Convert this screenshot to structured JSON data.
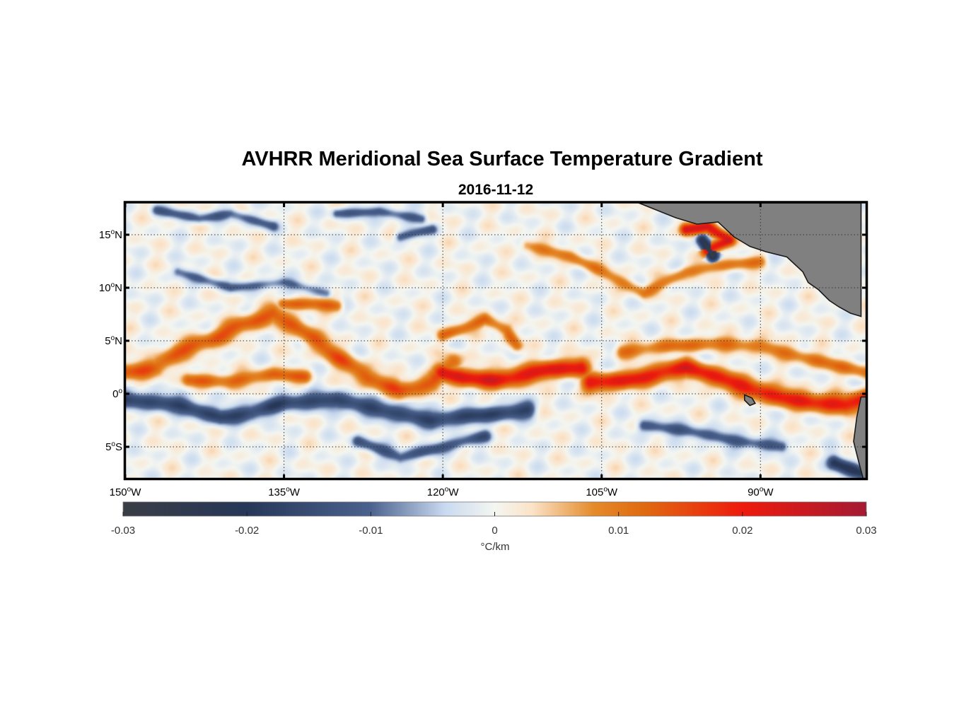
{
  "chart_data": {
    "type": "heatmap",
    "title": "AVHRR Meridional Sea Surface Temperature Gradient",
    "subtitle": "2016-11-12",
    "lon_range": [
      -150,
      -80
    ],
    "lat_range": [
      -8,
      18
    ],
    "x_ticks": [
      {
        "value": -150,
        "deg": "150",
        "hemi": "W"
      },
      {
        "value": -135,
        "deg": "135",
        "hemi": "W"
      },
      {
        "value": -120,
        "deg": "120",
        "hemi": "W"
      },
      {
        "value": -105,
        "deg": "105",
        "hemi": "W"
      },
      {
        "value": -90,
        "deg": "90",
        "hemi": "W"
      }
    ],
    "y_ticks": [
      {
        "value": 15,
        "deg": "15",
        "hemi": "N"
      },
      {
        "value": 10,
        "deg": "10",
        "hemi": "N"
      },
      {
        "value": 5,
        "deg": "5",
        "hemi": "N"
      },
      {
        "value": 0,
        "deg": "0",
        "hemi": ""
      },
      {
        "value": -5,
        "deg": "5",
        "hemi": "S"
      }
    ],
    "grid": "dotted",
    "colorbar": {
      "range": [
        -0.03,
        0.03
      ],
      "ticks": [
        -0.03,
        -0.02,
        -0.01,
        0,
        0.01,
        0.02,
        0.03
      ],
      "tick_labels": [
        "-0.03",
        "-0.02",
        "-0.01",
        "0",
        "0.01",
        "0.02",
        "0.03"
      ],
      "label": "°C/km",
      "colormap": [
        {
          "v": -0.03,
          "c": "#3a3d45"
        },
        {
          "v": -0.02,
          "c": "#263758"
        },
        {
          "v": -0.01,
          "c": "#4b628e"
        },
        {
          "v": -0.004,
          "c": "#c9daf0"
        },
        {
          "v": 0,
          "c": "#f4f6f1"
        },
        {
          "v": 0.003,
          "c": "#fbe3c8"
        },
        {
          "v": 0.008,
          "c": "#e48b2a"
        },
        {
          "v": 0.012,
          "c": "#e06a10"
        },
        {
          "v": 0.02,
          "c": "#ee1a0d"
        },
        {
          "v": 0.03,
          "c": "#a41a33"
        }
      ]
    },
    "features": [
      {
        "name": "equatorial-front-west",
        "sign": "positive",
        "path": [
          [
            -150,
            2.0
          ],
          [
            -147,
            2.5
          ],
          [
            -145,
            4.0
          ],
          [
            -142,
            5.0
          ],
          [
            -139,
            6.5
          ],
          [
            -136,
            7.5
          ],
          [
            -134,
            6.5
          ],
          [
            -132,
            5.0
          ],
          [
            -130,
            3.5
          ],
          [
            -127,
            1.5
          ],
          [
            -124,
            0.3
          ],
          [
            -121,
            1.0
          ],
          [
            -119,
            3.0
          ]
        ],
        "amp": 0.014,
        "width": 0.9
      },
      {
        "name": "front-west-lower",
        "sign": "positive",
        "path": [
          [
            -144,
            1.3
          ],
          [
            -140,
            1.2
          ],
          [
            -136,
            1.8
          ],
          [
            -133,
            1.6
          ]
        ],
        "amp": 0.012,
        "width": 0.7
      },
      {
        "name": "front-north-134",
        "sign": "positive",
        "path": [
          [
            -135,
            8.5
          ],
          [
            -132,
            8.5
          ],
          [
            -130,
            8.3
          ]
        ],
        "amp": 0.013,
        "width": 0.6
      },
      {
        "name": "equatorial-front-central",
        "sign": "positive",
        "path": [
          [
            -120,
            5.5
          ],
          [
            -118,
            6.2
          ],
          [
            -116,
            7.0
          ],
          [
            -114,
            6.0
          ],
          [
            -113,
            4.5
          ]
        ],
        "amp": 0.012,
        "width": 0.6
      },
      {
        "name": "equatorial-front-strong",
        "sign": "positive",
        "path": [
          [
            -120,
            2.0
          ],
          [
            -118,
            1.5
          ],
          [
            -115,
            1.3
          ],
          [
            -112,
            1.8
          ],
          [
            -110,
            2.3
          ],
          [
            -107,
            2.5
          ]
        ],
        "amp": 0.022,
        "width": 0.9
      },
      {
        "name": "equatorial-front-east",
        "sign": "positive",
        "path": [
          [
            -106,
            1.0
          ],
          [
            -103,
            1.2
          ],
          [
            -100,
            1.8
          ],
          [
            -97,
            2.5
          ],
          [
            -94,
            1.5
          ],
          [
            -91,
            0.5
          ],
          [
            -88,
            -0.3
          ],
          [
            -85,
            -0.8
          ],
          [
            -82,
            -1.0
          ],
          [
            -80,
            -0.5
          ]
        ],
        "amp": 0.021,
        "width": 0.9
      },
      {
        "name": "front-east-upper",
        "sign": "positive",
        "path": [
          [
            -103,
            4.0
          ],
          [
            -98,
            4.5
          ],
          [
            -94,
            4.8
          ],
          [
            -90,
            4.5
          ],
          [
            -86,
            3.5
          ],
          [
            -82,
            2.5
          ],
          [
            -80,
            2.0
          ]
        ],
        "amp": 0.011,
        "width": 0.7
      },
      {
        "name": "gulf-tehuantepec-warm",
        "sign": "positive",
        "path": [
          [
            -97,
            15.5
          ],
          [
            -95,
            15.8
          ],
          [
            -93,
            14.5
          ],
          [
            -95,
            13.5
          ]
        ],
        "amp": 0.024,
        "width": 0.6
      },
      {
        "name": "costa-rica-dome",
        "sign": "positive",
        "path": [
          [
            -112,
            14.0
          ],
          [
            -108,
            13.0
          ],
          [
            -104,
            11.0
          ],
          [
            -101,
            9.5
          ],
          [
            -97,
            11.5
          ],
          [
            -94,
            12.0
          ],
          [
            -90,
            12.5
          ]
        ],
        "amp": 0.01,
        "width": 0.6
      },
      {
        "name": "cold-band-south",
        "sign": "negative",
        "path": [
          [
            -150,
            -0.5
          ],
          [
            -145,
            -1.0
          ],
          [
            -141,
            -2.2
          ],
          [
            -138,
            -1.8
          ],
          [
            -135,
            -0.8
          ],
          [
            -130,
            -0.6
          ],
          [
            -126,
            -1.5
          ],
          [
            -121,
            -2.5
          ],
          [
            -116,
            -2.0
          ],
          [
            -112,
            -1.5
          ]
        ],
        "amp": 0.017,
        "width": 0.8
      },
      {
        "name": "cold-band-south-2",
        "sign": "negative",
        "path": [
          [
            -128,
            -4.5
          ],
          [
            -124,
            -6.0
          ],
          [
            -120,
            -5.0
          ],
          [
            -116,
            -4.0
          ]
        ],
        "amp": 0.013,
        "width": 0.6
      },
      {
        "name": "cold-band-east",
        "sign": "negative",
        "path": [
          [
            -101,
            -3.0
          ],
          [
            -97,
            -3.5
          ],
          [
            -92,
            -4.5
          ],
          [
            -88,
            -5.0
          ]
        ],
        "amp": 0.013,
        "width": 0.6
      },
      {
        "name": "cold-tehuantepec",
        "sign": "negative",
        "path": [
          [
            -95.5,
            14.5
          ],
          [
            -94.5,
            13.0
          ]
        ],
        "amp": 0.026,
        "width": 0.6
      },
      {
        "name": "cold-south-coast",
        "sign": "negative",
        "path": [
          [
            -83,
            -6.5
          ],
          [
            -80.5,
            -7.5
          ]
        ],
        "amp": 0.02,
        "width": 0.7
      },
      {
        "name": "cold-north-west",
        "sign": "negative",
        "path": [
          [
            -147,
            17.3
          ],
          [
            -143,
            16.5
          ],
          [
            -140,
            17.0
          ],
          [
            -136,
            15.8
          ]
        ],
        "amp": 0.011,
        "width": 0.5
      },
      {
        "name": "cold-north-central",
        "sign": "negative",
        "path": [
          [
            -130,
            17.0
          ],
          [
            -126,
            17.2
          ],
          [
            -122,
            16.5
          ]
        ],
        "amp": 0.012,
        "width": 0.5
      },
      {
        "name": "cold-north-mid",
        "sign": "negative",
        "path": [
          [
            -145,
            11.5
          ],
          [
            -140,
            10.0
          ],
          [
            -135,
            10.5
          ],
          [
            -131,
            9.5
          ]
        ],
        "amp": 0.01,
        "width": 0.5
      },
      {
        "name": "cold-north-120",
        "sign": "negative",
        "path": [
          [
            -124,
            14.8
          ],
          [
            -121,
            15.5
          ]
        ],
        "amp": 0.012,
        "width": 0.5
      }
    ],
    "land": [
      {
        "name": "central-america",
        "polygon": [
          [
            -101.5,
            18
          ],
          [
            -98,
            16.6
          ],
          [
            -96,
            16
          ],
          [
            -94,
            16.2
          ],
          [
            -92.5,
            14.8
          ],
          [
            -91,
            13.9
          ],
          [
            -89.5,
            13.4
          ],
          [
            -87.5,
            12.9
          ],
          [
            -86,
            11.5
          ],
          [
            -85.5,
            10.5
          ],
          [
            -84.5,
            9.8
          ],
          [
            -83.5,
            8.8
          ],
          [
            -82.6,
            8.2
          ],
          [
            -81.5,
            7.6
          ],
          [
            -80.5,
            7.3
          ],
          [
            -80.5,
            18
          ]
        ]
      },
      {
        "name": "south-america",
        "polygon": [
          [
            -80.5,
            -0.3
          ],
          [
            -80.9,
            -2.2
          ],
          [
            -81.2,
            -4.5
          ],
          [
            -80.7,
            -6.5
          ],
          [
            -80.3,
            -8
          ],
          [
            -80,
            -8
          ],
          [
            -80,
            -0.3
          ]
        ]
      },
      {
        "name": "galapagos",
        "polygon": [
          [
            -91.5,
            -0.1
          ],
          [
            -90.8,
            -0.4
          ],
          [
            -90.5,
            -0.9
          ],
          [
            -91.0,
            -1.1
          ],
          [
            -91.5,
            -0.6
          ]
        ]
      }
    ]
  }
}
